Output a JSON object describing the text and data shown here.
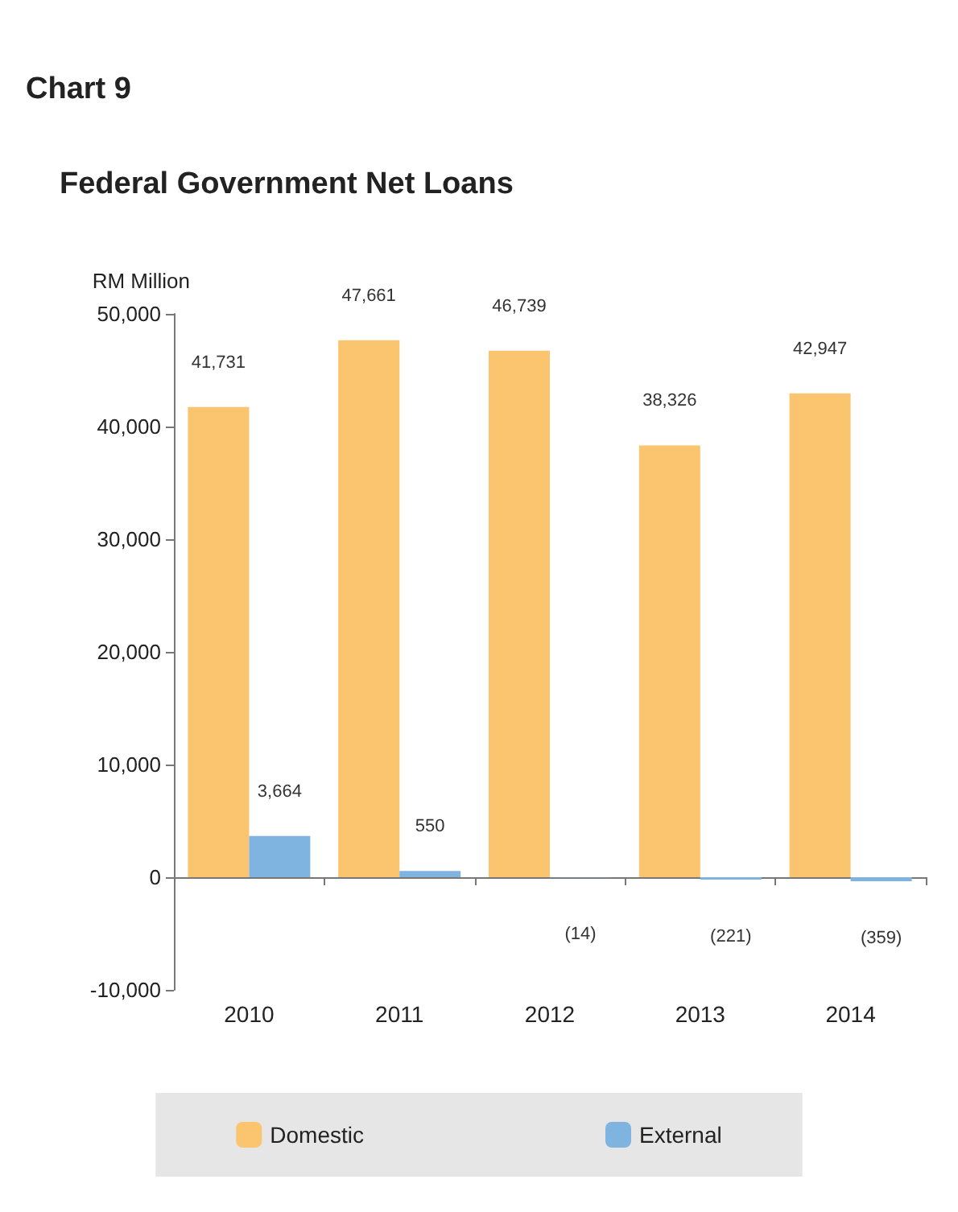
{
  "chart_data": {
    "type": "bar",
    "title": "Federal Government Net Loans",
    "ylabel": "RM Million",
    "annotations": [
      "Chart 9"
    ],
    "categories": [
      "2010",
      "2011",
      "2012",
      "2013",
      "2014"
    ],
    "series": [
      {
        "name": "Domestic",
        "color": "#fbc46f",
        "values": [
          41731,
          47661,
          46739,
          38326,
          42947
        ],
        "value_labels": [
          "41,731",
          "47,661",
          "46,739",
          "38,326",
          "42,947"
        ]
      },
      {
        "name": "External",
        "color": "#7fb3e0",
        "values": [
          3664,
          550,
          -14,
          -221,
          -359
        ],
        "value_labels": [
          "3,664",
          "550",
          "(14)",
          "(221)",
          "(359)"
        ]
      }
    ],
    "ylim": [
      -10000,
      50000
    ],
    "yticks": [
      {
        "value": -10000,
        "label": "-10,000"
      },
      {
        "value": 0,
        "label": "0"
      },
      {
        "value": 10000,
        "label": "10,000"
      },
      {
        "value": 20000,
        "label": "20,000"
      },
      {
        "value": 30000,
        "label": "30,000"
      },
      {
        "value": 40000,
        "label": "40,000"
      },
      {
        "value": 50000,
        "label": "50,000"
      }
    ],
    "legend": "bottom"
  }
}
